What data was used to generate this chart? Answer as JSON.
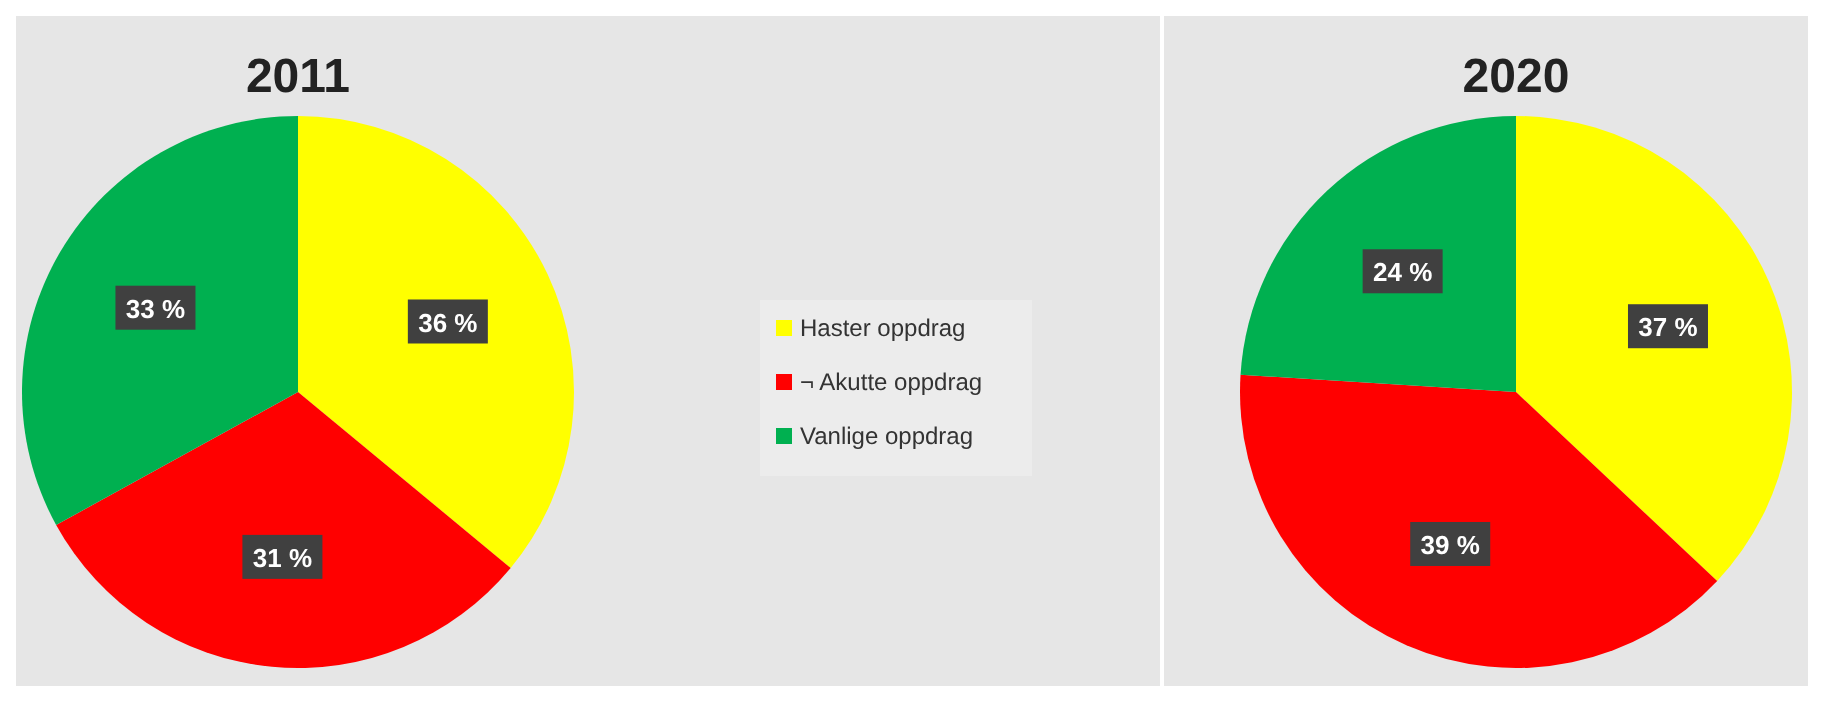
{
  "chart_data": [
    {
      "type": "pie",
      "title": "2011",
      "categories": [
        "Haster oppdrag",
        "¬ Akutte oppdrag",
        "Vanlige oppdrag"
      ],
      "values": [
        36,
        31,
        33
      ],
      "colors": [
        "#ffff00",
        "#ff0000",
        "#00b050"
      ],
      "value_labels": [
        "36 %",
        "31 %",
        "33 %"
      ],
      "legend": "right"
    },
    {
      "type": "pie",
      "title": "2020",
      "categories": [
        null,
        null,
        null
      ],
      "values": [
        37,
        39,
        24
      ],
      "colors": [
        "#ffff00",
        "#ff0000",
        "#00b050"
      ],
      "value_labels": [
        "37 %",
        "39 %",
        "24 %"
      ]
    }
  ]
}
